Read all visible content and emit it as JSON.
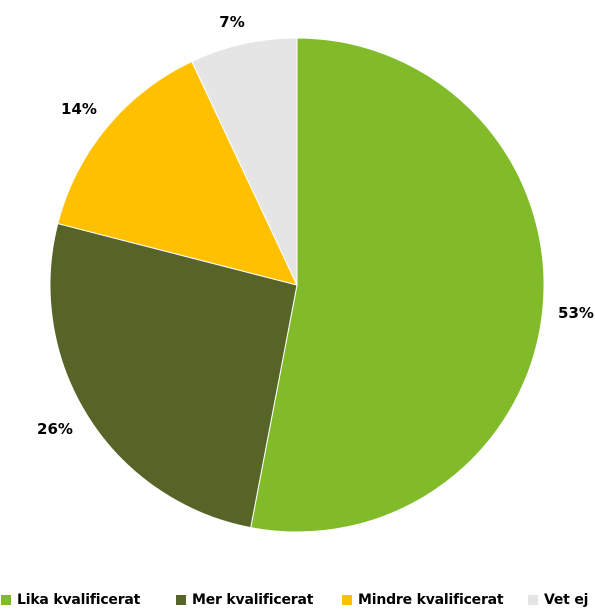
{
  "chart_data": {
    "type": "pie",
    "title": "",
    "slices": [
      {
        "label": "Lika kvalificerat",
        "value": 53,
        "display": "53%",
        "color": "#82bb2a"
      },
      {
        "label": "Mer kvalificerat",
        "value": 26,
        "display": "26%",
        "color": "#566427"
      },
      {
        "label": "Mindre kvalificerat",
        "value": 14,
        "display": "14%",
        "color": "#ffc000"
      },
      {
        "label": "Vet ej",
        "value": 7,
        "display": "7%",
        "color": "#e5e5e5"
      }
    ],
    "start_angle_deg": 0,
    "direction": "clockwise",
    "legend_position": "bottom"
  }
}
